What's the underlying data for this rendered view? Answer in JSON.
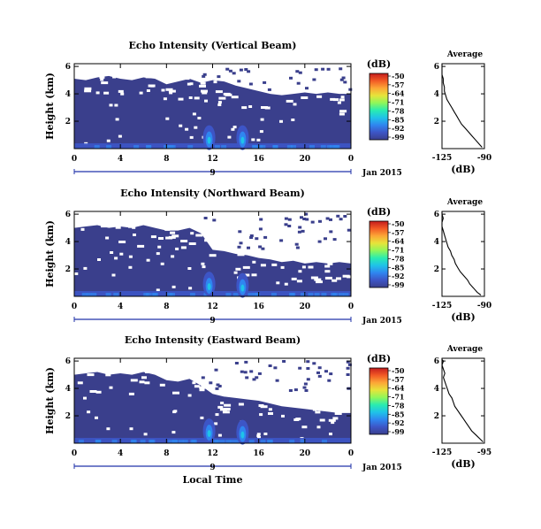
{
  "colors": {
    "background_fill": "#3a3f8c",
    "gap": "#ffffff",
    "timeline": "#2233aa",
    "profile_line": "#000000",
    "colormap": [
      "#3a3f8c",
      "#3d55c6",
      "#2f86f0",
      "#1fc3e8",
      "#29ecb0",
      "#8ff75a",
      "#e6e43a",
      "#fca736",
      "#f25a25",
      "#c41d1d"
    ]
  },
  "chart_data": [
    {
      "type": "heatmap",
      "title": "Echo Intensity (Vertical Beam)",
      "ylabel": "Height (km)",
      "xlabel": "",
      "x_ticks": [
        "0",
        "4",
        "8",
        "12",
        "16",
        "20",
        "0"
      ],
      "xlim": [
        0,
        24
      ],
      "y_ticks": [
        "2",
        "4",
        "6"
      ],
      "ylim": [
        0,
        6.2
      ],
      "day_marker": "9",
      "date_label": "Jan 2015",
      "colorbar": {
        "unit": "(dB)",
        "ticks": [
          "-50",
          "-57",
          "-64",
          "-71",
          "-78",
          "-85",
          "-92",
          "-99"
        ]
      },
      "blank_above_km": [
        [
          0,
          5.1
        ],
        [
          1,
          5.0
        ],
        [
          2,
          5.2
        ],
        [
          3,
          5.3
        ],
        [
          4,
          5.1
        ],
        [
          5,
          5.0
        ],
        [
          6,
          5.2
        ],
        [
          7,
          5.1
        ],
        [
          8,
          4.7
        ],
        [
          9,
          4.9
        ],
        [
          10,
          5.1
        ],
        [
          11,
          4.8
        ],
        [
          12,
          5.0
        ],
        [
          13,
          4.9
        ],
        [
          14,
          4.6
        ],
        [
          15,
          4.4
        ],
        [
          16,
          4.2
        ],
        [
          17,
          4.0
        ],
        [
          18,
          3.9
        ],
        [
          19,
          4.0
        ],
        [
          20,
          4.1
        ],
        [
          21,
          4.0
        ],
        [
          22,
          4.1
        ],
        [
          23,
          4.0
        ],
        [
          24,
          4.0
        ]
      ],
      "bright_echoes": [
        [
          11.7,
          0.8
        ],
        [
          14.6,
          0.8
        ]
      ],
      "profile": {
        "title": "Average",
        "xlabel": "(dB)",
        "x_ticks": [
          "-125",
          "-90"
        ],
        "xlim": [
          -125,
          -90
        ],
        "y_ticks": [
          "2",
          "4",
          "6"
        ],
        "ylim": [
          0,
          6.2
        ],
        "x": [
          -92,
          -94,
          -97,
          -100,
          -103,
          -106,
          -109,
          -111,
          -113,
          -115,
          -117,
          -119,
          -121,
          -122,
          -123,
          -123,
          -124,
          -124,
          -125,
          -125,
          -125,
          -125,
          -125
        ],
        "y": [
          0.1,
          0.3,
          0.6,
          0.9,
          1.2,
          1.5,
          1.8,
          2.1,
          2.4,
          2.7,
          3.0,
          3.3,
          3.6,
          3.9,
          4.2,
          4.5,
          4.8,
          5.1,
          5.4,
          5.7,
          6.0,
          6.1,
          6.2
        ]
      }
    },
    {
      "type": "heatmap",
      "title": "Echo Intensity (Northward Beam)",
      "ylabel": "Height (km)",
      "xlabel": "",
      "x_ticks": [
        "0",
        "4",
        "8",
        "12",
        "16",
        "20",
        "0"
      ],
      "xlim": [
        0,
        24
      ],
      "y_ticks": [
        "2",
        "4",
        "6"
      ],
      "ylim": [
        0,
        6.2
      ],
      "day_marker": "9",
      "date_label": "Jan 2015",
      "colorbar": {
        "unit": "(dB)",
        "ticks": [
          "-50",
          "-57",
          "-64",
          "-71",
          "-78",
          "-85",
          "-92",
          "-99"
        ]
      },
      "blank_above_km": [
        [
          0,
          5.0
        ],
        [
          1,
          5.1
        ],
        [
          2,
          5.2
        ],
        [
          3,
          5.0
        ],
        [
          4,
          5.1
        ],
        [
          5,
          5.0
        ],
        [
          6,
          5.2
        ],
        [
          7,
          5.0
        ],
        [
          8,
          4.8
        ],
        [
          9,
          4.8
        ],
        [
          10,
          5.0
        ],
        [
          11,
          4.6
        ],
        [
          12,
          3.4
        ],
        [
          13,
          3.3
        ],
        [
          14,
          3.1
        ],
        [
          15,
          3.0
        ],
        [
          16,
          2.8
        ],
        [
          17,
          2.7
        ],
        [
          18,
          2.5
        ],
        [
          19,
          2.6
        ],
        [
          20,
          2.4
        ],
        [
          21,
          2.5
        ],
        [
          22,
          2.4
        ],
        [
          23,
          2.5
        ],
        [
          24,
          2.4
        ]
      ],
      "bright_echoes": [
        [
          11.7,
          0.9
        ],
        [
          14.6,
          0.8
        ]
      ],
      "profile": {
        "title": "Average",
        "xlabel": "(dB)",
        "x_ticks": [
          "-125",
          "-90"
        ],
        "xlim": [
          -125,
          -90
        ],
        "y_ticks": [
          "2",
          "4",
          "6"
        ],
        "ylim": [
          0,
          6.2
        ],
        "x": [
          -93,
          -96,
          -99,
          -102,
          -104,
          -107,
          -110,
          -112,
          -114,
          -115,
          -117,
          -118,
          -120,
          -121,
          -122,
          -123,
          -124,
          -125,
          -125,
          -124,
          -125,
          -125,
          -125
        ],
        "y": [
          0.1,
          0.3,
          0.6,
          0.9,
          1.2,
          1.5,
          1.8,
          2.1,
          2.4,
          2.7,
          3.0,
          3.3,
          3.6,
          3.9,
          4.2,
          4.5,
          4.8,
          5.1,
          5.4,
          5.7,
          6.0,
          6.1,
          6.2
        ]
      }
    },
    {
      "type": "heatmap",
      "title": "Echo Intensity (Eastward Beam)",
      "ylabel": "Height (km)",
      "xlabel": "Local Time",
      "x_ticks": [
        "0",
        "4",
        "8",
        "12",
        "16",
        "20",
        "0"
      ],
      "xlim": [
        0,
        24
      ],
      "y_ticks": [
        "2",
        "4",
        "6"
      ],
      "ylim": [
        0,
        6.2
      ],
      "day_marker": "9",
      "date_label": "Jan 2015",
      "colorbar": {
        "unit": "(dB)",
        "ticks": [
          "-50",
          "-57",
          "-64",
          "-71",
          "-78",
          "-85",
          "-92",
          "-99"
        ]
      },
      "blank_above_km": [
        [
          0,
          5.0
        ],
        [
          1,
          5.1
        ],
        [
          2,
          5.2
        ],
        [
          3,
          5.0
        ],
        [
          4,
          5.1
        ],
        [
          5,
          5.0
        ],
        [
          6,
          5.2
        ],
        [
          7,
          5.0
        ],
        [
          8,
          4.6
        ],
        [
          9,
          4.5
        ],
        [
          10,
          4.7
        ],
        [
          11,
          4.2
        ],
        [
          12,
          3.6
        ],
        [
          13,
          3.4
        ],
        [
          14,
          3.3
        ],
        [
          15,
          3.2
        ],
        [
          16,
          3.1
        ],
        [
          17,
          2.9
        ],
        [
          18,
          2.7
        ],
        [
          19,
          2.6
        ],
        [
          20,
          2.5
        ],
        [
          21,
          2.4
        ],
        [
          22,
          2.3
        ],
        [
          23,
          2.2
        ],
        [
          24,
          2.2
        ]
      ],
      "bright_echoes": [
        [
          11.7,
          0.9
        ],
        [
          14.6,
          0.8
        ]
      ],
      "profile": {
        "title": "Average",
        "xlabel": "(dB)",
        "x_ticks": [
          "-125",
          "-95"
        ],
        "xlim": [
          -125,
          -95
        ],
        "y_ticks": [
          "2",
          "4",
          "6"
        ],
        "ylim": [
          0,
          6.2
        ],
        "x": [
          -96,
          -98,
          -101,
          -104,
          -106,
          -108,
          -110,
          -112,
          -114,
          -116,
          -117,
          -118,
          -120,
          -121,
          -122,
          -123,
          -124,
          -123,
          -124,
          -125,
          -124,
          -125,
          -125
        ],
        "y": [
          0.1,
          0.3,
          0.6,
          0.9,
          1.2,
          1.5,
          1.8,
          2.1,
          2.4,
          2.7,
          3.0,
          3.3,
          3.6,
          3.9,
          4.2,
          4.5,
          4.8,
          5.1,
          5.4,
          5.7,
          6.0,
          6.1,
          6.2
        ]
      }
    }
  ]
}
